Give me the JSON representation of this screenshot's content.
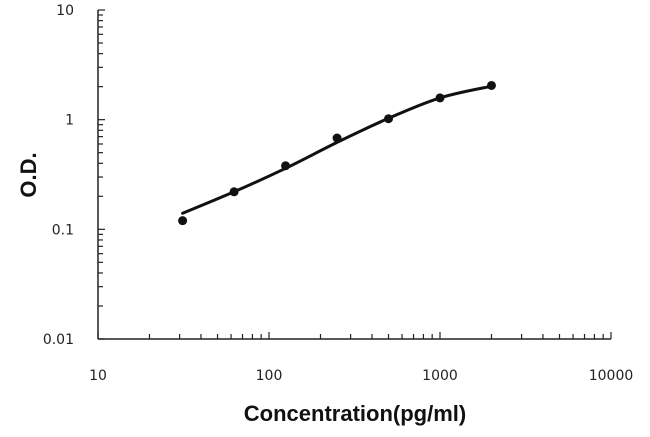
{
  "chart_data": {
    "type": "scatter",
    "title": "",
    "xlabel": "Concentration(pg/ml)",
    "ylabel": "O.D.",
    "x_scale": "log",
    "y_scale": "log",
    "xlim": [
      10,
      10000
    ],
    "ylim": [
      0.01,
      10
    ],
    "x_tick_labels": [
      "10",
      "100",
      "1000",
      "10000"
    ],
    "y_tick_labels": [
      "0.01",
      "0.1",
      "1",
      "10"
    ],
    "grid": false,
    "legend": "none",
    "series": [
      {
        "points": [
          {
            "x": 31.25,
            "y": 0.12
          },
          {
            "x": 62.5,
            "y": 0.22
          },
          {
            "x": 125,
            "y": 0.38
          },
          {
            "x": 250,
            "y": 0.68
          },
          {
            "x": 500,
            "y": 1.02
          },
          {
            "x": 1000,
            "y": 1.58
          },
          {
            "x": 2000,
            "y": 2.05
          }
        ],
        "fit_curve": {
          "x": [
            31.25,
            62.5,
            125,
            250,
            500,
            1000,
            2000
          ],
          "y": [
            0.14,
            0.22,
            0.36,
            0.62,
            1.03,
            1.58,
            2.02
          ]
        }
      }
    ],
    "colors": {
      "points": "#111111",
      "curve": "#111111",
      "axis": "#222222"
    }
  }
}
